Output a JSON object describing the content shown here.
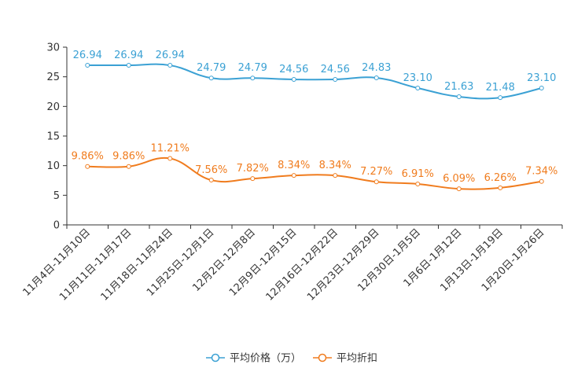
{
  "chart_data": {
    "type": "line",
    "title": "",
    "xlabel": "",
    "ylabel": "",
    "ylim": [
      0,
      30
    ],
    "yticks": [
      0,
      5,
      10,
      15,
      20,
      25,
      30
    ],
    "grid": false,
    "legend_position": "bottom",
    "categories": [
      "11月4日-11月10日",
      "11月11日-11月17日",
      "11月18日-11月24日",
      "11月25日-12月1日",
      "12月2日-12月8日",
      "12月9日-12月15日",
      "12月16日-12月22日",
      "12月23日-12月29日",
      "12月30日-1月5日",
      "1月6日-1月12日",
      "1月13日-1月19日",
      "1月20日-1月26日"
    ],
    "series": [
      {
        "name": "平均价格（万）",
        "color": "#3ba1d4",
        "values": [
          26.94,
          26.94,
          26.94,
          24.79,
          24.79,
          24.56,
          24.56,
          24.83,
          23.1,
          21.63,
          21.48,
          23.1
        ],
        "labels": [
          "26.94",
          "26.94",
          "26.94",
          "24.79",
          "24.79",
          "24.56",
          "24.56",
          "24.83",
          "23.10",
          "21.63",
          "21.48",
          "23.10"
        ]
      },
      {
        "name": "平均折扣",
        "color": "#f07c1e",
        "values": [
          9.86,
          9.86,
          11.21,
          7.56,
          7.82,
          8.34,
          8.34,
          7.27,
          6.91,
          6.09,
          6.26,
          7.34
        ],
        "labels": [
          "9.86%",
          "9.86%",
          "11.21%",
          "7.56%",
          "7.82%",
          "8.34%",
          "8.34%",
          "7.27%",
          "6.91%",
          "6.09%",
          "6.26%",
          "7.34%"
        ]
      }
    ]
  }
}
